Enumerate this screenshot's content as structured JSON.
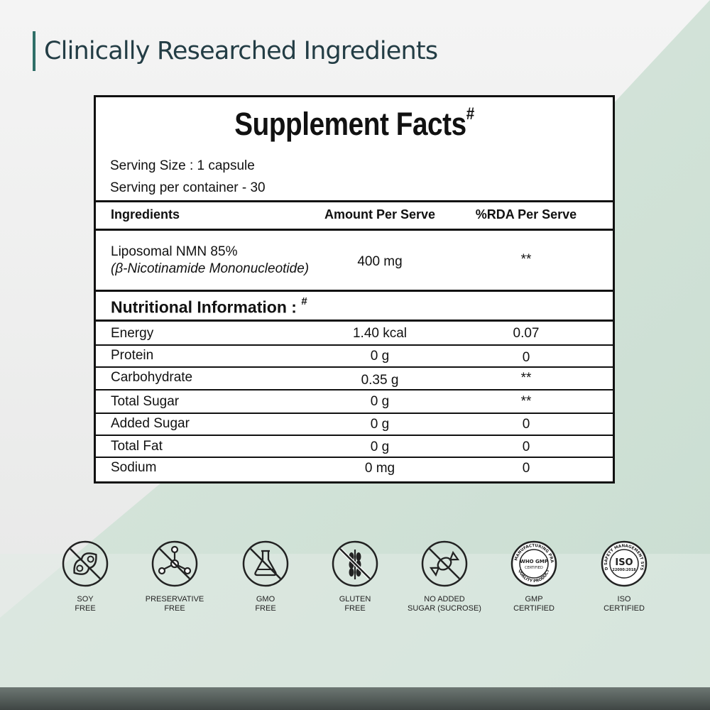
{
  "headline": "Clinically Researched Ingredients",
  "facts": {
    "title": "Supplement Facts",
    "title_mark": "#",
    "serving_size": "Serving Size : 1 capsule",
    "serving_per_container": "Serving per container - 30",
    "columns": [
      "Ingredients",
      "Amount Per Serve",
      "%RDA Per Serve"
    ],
    "ingredient": {
      "name": "Liposomal NMN 85%",
      "subname": "(β-Nicotinamide Mononucleotide)",
      "amount": "400 mg",
      "rda": "**"
    },
    "nutrition_heading": "Nutritional Information :",
    "nutrition_mark": "#",
    "nutrition_rows": [
      {
        "name": "Energy",
        "amount": "1.40 kcal",
        "rda": "0.07"
      },
      {
        "name": "Protein",
        "amount": "0 g",
        "rda": "0"
      },
      {
        "name": "Carbohydrate",
        "amount": "0.35 g",
        "rda": "**"
      },
      {
        "name": "Total Sugar",
        "amount": "0 g",
        "rda": "**"
      },
      {
        "name": "Added Sugar",
        "amount": "0 g",
        "rda": "0"
      },
      {
        "name": "Total Fat",
        "amount": "0 g",
        "rda": "0"
      },
      {
        "name": "Sodium",
        "amount": "0 mg",
        "rda": "0"
      }
    ]
  },
  "badges": [
    {
      "icon": "soy-free-icon",
      "label": "SOY\nFREE"
    },
    {
      "icon": "preservative-free-icon",
      "label": "PRESERVATIVE\nFREE"
    },
    {
      "icon": "gmo-free-icon",
      "label": "GMO\nFREE"
    },
    {
      "icon": "gluten-free-icon",
      "label": "GLUTEN\nFREE"
    },
    {
      "icon": "no-added-sugar-icon",
      "label": "NO ADDED\nSUGAR (SUCROSE)"
    },
    {
      "icon": "gmp-certified-icon",
      "label": "GMP\nCERTIFIED",
      "seal_text": "WHO GMP",
      "seal_sub": "CERTIFIED",
      "seal_ring_top": "GOOD MANUFACTURING PRACTICE",
      "seal_ring_bottom": "QUALITY PRODUCT"
    },
    {
      "icon": "iso-certified-icon",
      "label": "ISO\nCERTIFIED",
      "seal_text": "ISO",
      "seal_sub": "22000:2018",
      "seal_ring_top": "FOOD SAFETY MANAGEMENT SYSTEM"
    }
  ],
  "colors": {
    "accent": "#2f6f68",
    "mint": "#d4e4da",
    "headline": "#233d45"
  }
}
